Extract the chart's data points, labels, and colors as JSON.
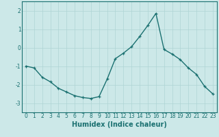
{
  "x": [
    0,
    1,
    2,
    3,
    4,
    5,
    6,
    7,
    8,
    9,
    10,
    11,
    12,
    13,
    14,
    15,
    16,
    17,
    18,
    19,
    20,
    21,
    22,
    23
  ],
  "y": [
    -1.0,
    -1.1,
    -1.6,
    -1.85,
    -2.2,
    -2.4,
    -2.6,
    -2.7,
    -2.75,
    -2.65,
    -1.7,
    -0.6,
    -0.3,
    0.05,
    0.6,
    1.2,
    1.85,
    -0.1,
    -0.35,
    -0.65,
    -1.1,
    -1.45,
    -2.1,
    -2.5
  ],
  "line_color": "#1a7070",
  "marker": "+",
  "marker_size": 3,
  "background_color": "#cce8e8",
  "grid_color": "#aed4d4",
  "xlabel": "Humidex (Indice chaleur)",
  "xlabel_fontsize": 7,
  "xlabel_fontweight": "bold",
  "xlim": [
    -0.5,
    23.5
  ],
  "ylim": [
    -3.5,
    2.5
  ],
  "yticks": [
    -3,
    -2,
    -1,
    0,
    1,
    2
  ],
  "xticks": [
    0,
    1,
    2,
    3,
    4,
    5,
    6,
    7,
    8,
    9,
    10,
    11,
    12,
    13,
    14,
    15,
    16,
    17,
    18,
    19,
    20,
    21,
    22,
    23
  ],
  "tick_fontsize": 5.5,
  "line_width": 1.0
}
